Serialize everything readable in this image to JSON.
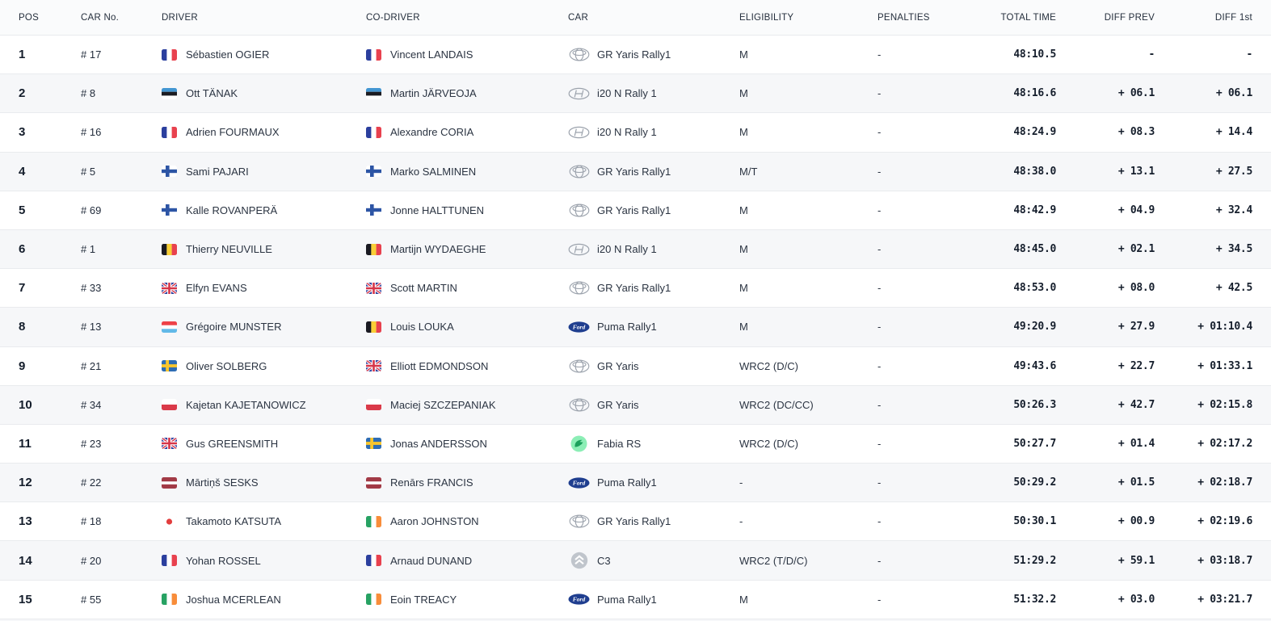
{
  "table": {
    "columns": {
      "pos": "POS",
      "car_no": "CAR No.",
      "driver": "DRIVER",
      "co_driver": "CO-DRIVER",
      "car": "CAR",
      "eligibility": "ELIGIBILITY",
      "penalties": "PENALTIES",
      "total_time": "TOTAL TIME",
      "diff_prev": "DIFF PREV",
      "diff_first": "DIFF 1st"
    },
    "rows": [
      {
        "pos": "1",
        "car_no": "# 17",
        "driver_flag": "fr",
        "driver": "Sébastien OGIER",
        "codriver_flag": "fr",
        "co_driver": "Vincent LANDAIS",
        "car_brand": "toyota",
        "car_model": "GR Yaris Rally1",
        "eligibility": "M",
        "penalties": "-",
        "total_time": "48:10.5",
        "diff_prev": "-",
        "diff_first": "-"
      },
      {
        "pos": "2",
        "car_no": "# 8",
        "driver_flag": "ee",
        "driver": "Ott TÄNAK",
        "codriver_flag": "ee",
        "co_driver": "Martin JÄRVEOJA",
        "car_brand": "hyundai",
        "car_model": "i20 N Rally 1",
        "eligibility": "M",
        "penalties": "-",
        "total_time": "48:16.6",
        "diff_prev": "+ 06.1",
        "diff_first": "+ 06.1"
      },
      {
        "pos": "3",
        "car_no": "# 16",
        "driver_flag": "fr",
        "driver": "Adrien FOURMAUX",
        "codriver_flag": "fr",
        "co_driver": "Alexandre CORIA",
        "car_brand": "hyundai",
        "car_model": "i20 N Rally 1",
        "eligibility": "M",
        "penalties": "-",
        "total_time": "48:24.9",
        "diff_prev": "+ 08.3",
        "diff_first": "+ 14.4"
      },
      {
        "pos": "4",
        "car_no": "# 5",
        "driver_flag": "fi",
        "driver": "Sami PAJARI",
        "codriver_flag": "fi",
        "co_driver": "Marko SALMINEN",
        "car_brand": "toyota",
        "car_model": "GR Yaris Rally1",
        "eligibility": "M/T",
        "penalties": "-",
        "total_time": "48:38.0",
        "diff_prev": "+ 13.1",
        "diff_first": "+ 27.5"
      },
      {
        "pos": "5",
        "car_no": "# 69",
        "driver_flag": "fi",
        "driver": "Kalle ROVANPERÄ",
        "codriver_flag": "fi",
        "co_driver": "Jonne HALTTUNEN",
        "car_brand": "toyota",
        "car_model": "GR Yaris Rally1",
        "eligibility": "M",
        "penalties": "-",
        "total_time": "48:42.9",
        "diff_prev": "+ 04.9",
        "diff_first": "+ 32.4"
      },
      {
        "pos": "6",
        "car_no": "# 1",
        "driver_flag": "be",
        "driver": "Thierry NEUVILLE",
        "codriver_flag": "be",
        "co_driver": "Martijn WYDAEGHE",
        "car_brand": "hyundai",
        "car_model": "i20 N Rally 1",
        "eligibility": "M",
        "penalties": "-",
        "total_time": "48:45.0",
        "diff_prev": "+ 02.1",
        "diff_first": "+ 34.5"
      },
      {
        "pos": "7",
        "car_no": "# 33",
        "driver_flag": "gb",
        "driver": "Elfyn EVANS",
        "codriver_flag": "gb",
        "co_driver": "Scott MARTIN",
        "car_brand": "toyota",
        "car_model": "GR Yaris Rally1",
        "eligibility": "M",
        "penalties": "-",
        "total_time": "48:53.0",
        "diff_prev": "+ 08.0",
        "diff_first": "+ 42.5"
      },
      {
        "pos": "8",
        "car_no": "# 13",
        "driver_flag": "lu",
        "driver": "Grégoire MUNSTER",
        "codriver_flag": "be",
        "co_driver": "Louis LOUKA",
        "car_brand": "ford",
        "car_model": "Puma Rally1",
        "eligibility": "M",
        "penalties": "-",
        "total_time": "49:20.9",
        "diff_prev": "+ 27.9",
        "diff_first": "+ 01:10.4"
      },
      {
        "pos": "9",
        "car_no": "# 21",
        "driver_flag": "se",
        "driver": "Oliver SOLBERG",
        "codriver_flag": "gb",
        "co_driver": "Elliott EDMONDSON",
        "car_brand": "toyota",
        "car_model": "GR Yaris",
        "eligibility": "WRC2 (D/C)",
        "penalties": "-",
        "total_time": "49:43.6",
        "diff_prev": "+ 22.7",
        "diff_first": "+ 01:33.1"
      },
      {
        "pos": "10",
        "car_no": "# 34",
        "driver_flag": "pl",
        "driver": "Kajetan KAJETANOWICZ",
        "codriver_flag": "pl",
        "co_driver": "Maciej SZCZEPANIAK",
        "car_brand": "toyota",
        "car_model": "GR Yaris",
        "eligibility": "WRC2 (DC/CC)",
        "penalties": "-",
        "total_time": "50:26.3",
        "diff_prev": "+ 42.7",
        "diff_first": "+ 02:15.8"
      },
      {
        "pos": "11",
        "car_no": "# 23",
        "driver_flag": "gb",
        "driver": "Gus GREENSMITH",
        "codriver_flag": "se",
        "co_driver": "Jonas ANDERSSON",
        "car_brand": "skoda",
        "car_model": "Fabia RS",
        "eligibility": "WRC2 (D/C)",
        "penalties": "-",
        "total_time": "50:27.7",
        "diff_prev": "+ 01.4",
        "diff_first": "+ 02:17.2"
      },
      {
        "pos": "12",
        "car_no": "# 22",
        "driver_flag": "lv",
        "driver": "Mārtiņš SESKS",
        "codriver_flag": "lv",
        "co_driver": "Renārs FRANCIS",
        "car_brand": "ford",
        "car_model": "Puma Rally1",
        "eligibility": "-",
        "penalties": "-",
        "total_time": "50:29.2",
        "diff_prev": "+ 01.5",
        "diff_first": "+ 02:18.7"
      },
      {
        "pos": "13",
        "car_no": "# 18",
        "driver_flag": "jp",
        "driver": "Takamoto KATSUTA",
        "codriver_flag": "ie",
        "co_driver": "Aaron JOHNSTON",
        "car_brand": "toyota",
        "car_model": "GR Yaris Rally1",
        "eligibility": "-",
        "penalties": "-",
        "total_time": "50:30.1",
        "diff_prev": "+ 00.9",
        "diff_first": "+ 02:19.6"
      },
      {
        "pos": "14",
        "car_no": "# 20",
        "driver_flag": "fr",
        "driver": "Yohan ROSSEL",
        "codriver_flag": "fr",
        "co_driver": "Arnaud DUNAND",
        "car_brand": "citroen",
        "car_model": "C3",
        "eligibility": "WRC2 (T/D/C)",
        "penalties": "-",
        "total_time": "51:29.2",
        "diff_prev": "+ 59.1",
        "diff_first": "+ 03:18.7"
      },
      {
        "pos": "15",
        "car_no": "# 55",
        "driver_flag": "ie",
        "driver": "Joshua MCERLEAN",
        "codriver_flag": "ie",
        "co_driver": "Eoin TREACY",
        "car_brand": "ford",
        "car_model": "Puma Rally1",
        "eligibility": "M",
        "penalties": "-",
        "total_time": "51:32.2",
        "diff_prev": "+ 03.0",
        "diff_first": "+ 03:21.7"
      }
    ]
  },
  "colors": {
    "row_alt": "#f6f7f9",
    "row_border": "#e9ebee",
    "text_dark": "#141d2b",
    "text_main": "#2b3442",
    "ford_blue": "#1f3e8f",
    "skoda_green": "#8ceeb6"
  }
}
